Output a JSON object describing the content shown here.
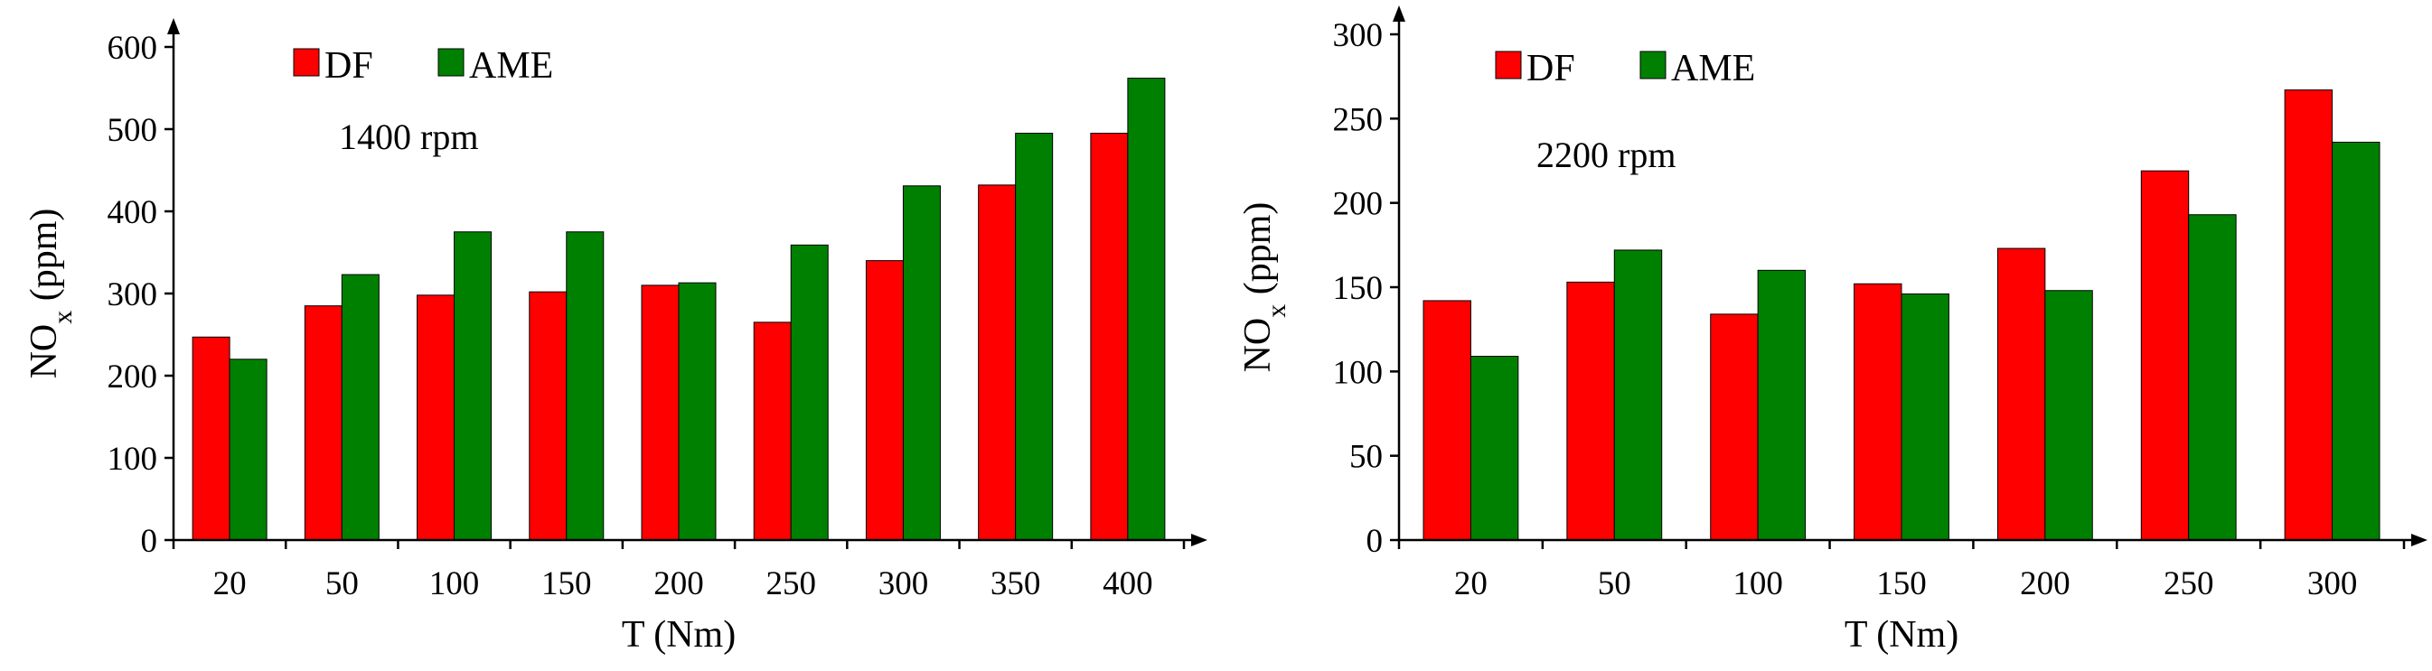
{
  "chart_data": [
    {
      "type": "bar",
      "annotation": "1400 rpm",
      "xlabel": "T (Nm)",
      "ylabel": {
        "main": "NO",
        "sub": "x",
        "rest": " (ppm)"
      },
      "categories": [
        "20",
        "50",
        "100",
        "150",
        "200",
        "250",
        "300",
        "350",
        "400"
      ],
      "ylim": [
        0,
        600
      ],
      "yticks": [
        0,
        100,
        200,
        300,
        400,
        500,
        600
      ],
      "grid": false,
      "legend_position": "top-left",
      "series": [
        {
          "name": "DF",
          "color": "#ff0000",
          "values": [
            247,
            285,
            298,
            302,
            310,
            265,
            340,
            432,
            495
          ]
        },
        {
          "name": "AME",
          "color": "#008000",
          "values": [
            220,
            323,
            375,
            375,
            313,
            359,
            431,
            495,
            562
          ]
        }
      ]
    },
    {
      "type": "bar",
      "annotation": "2200 rpm",
      "xlabel": "T (Nm)",
      "ylabel": {
        "main": "NO",
        "sub": "x",
        "rest": " (ppm)"
      },
      "categories": [
        "20",
        "50",
        "100",
        "150",
        "200",
        "250",
        "300"
      ],
      "ylim": [
        0,
        300
      ],
      "yticks": [
        0,
        50,
        100,
        150,
        200,
        250,
        300
      ],
      "grid": false,
      "legend_position": "top-left",
      "series": [
        {
          "name": "DF",
          "color": "#ff0000",
          "values": [
            142,
            153,
            134,
            152,
            173,
            219,
            267
          ]
        },
        {
          "name": "AME",
          "color": "#008000",
          "values": [
            109,
            172,
            160,
            146,
            148,
            193,
            236
          ]
        }
      ]
    }
  ]
}
